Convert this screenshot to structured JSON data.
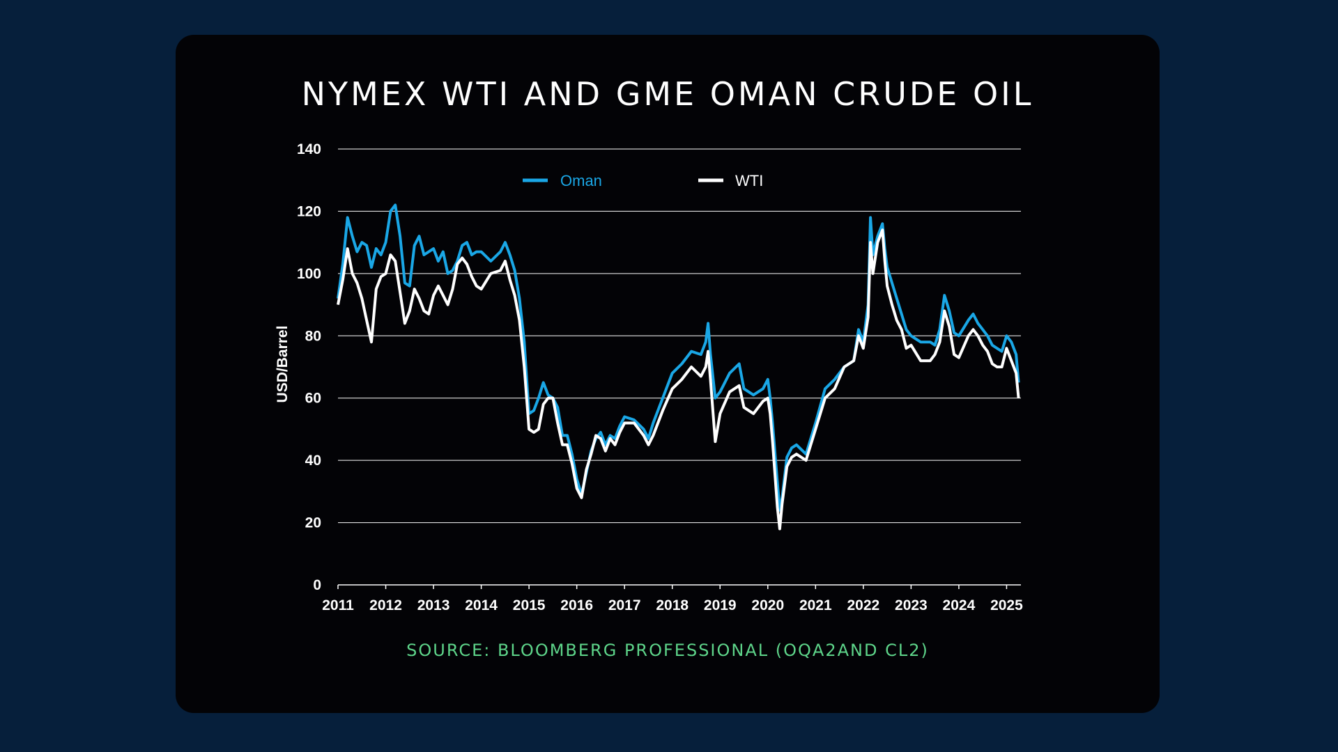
{
  "colors": {
    "background": "#061f3b",
    "card": "#030306",
    "oman": "#1aa7e6",
    "wti": "#ffffff",
    "source": "#5ed58a",
    "grid": "#ffffff"
  },
  "chart_data": {
    "type": "line",
    "title": "NYMEX WTI AND GME OMAN CRUDE OIL",
    "ylabel": "USD/Barrel",
    "xlabel": "",
    "source": "SOURCE: BLOOMBERG PROFESSIONAL (OQA2AND CL2)",
    "ylim": [
      0,
      140
    ],
    "yticks": [
      "0",
      "20",
      "40",
      "60",
      "80",
      "100",
      "120",
      "140"
    ],
    "xlim": [
      2011,
      2025.3
    ],
    "xticks": [
      "2011",
      "2012",
      "2013",
      "2014",
      "2015",
      "2016",
      "2017",
      "2018",
      "2019",
      "2020",
      "2021",
      "2022",
      "2023",
      "2024",
      "2025"
    ],
    "grid": "horizontal",
    "legend_position": "top",
    "series": [
      {
        "name": "Oman",
        "color": "#1aa7e6",
        "x": [
          2011.0,
          2011.1,
          2011.2,
          2011.3,
          2011.4,
          2011.5,
          2011.6,
          2011.7,
          2011.8,
          2011.9,
          2012.0,
          2012.1,
          2012.2,
          2012.3,
          2012.4,
          2012.5,
          2012.6,
          2012.7,
          2012.8,
          2012.9,
          2013.0,
          2013.1,
          2013.2,
          2013.3,
          2013.4,
          2013.5,
          2013.6,
          2013.7,
          2013.8,
          2013.9,
          2014.0,
          2014.2,
          2014.4,
          2014.5,
          2014.6,
          2014.7,
          2014.8,
          2014.9,
          2015.0,
          2015.1,
          2015.2,
          2015.3,
          2015.4,
          2015.5,
          2015.6,
          2015.7,
          2015.8,
          2015.9,
          2016.0,
          2016.1,
          2016.2,
          2016.3,
          2016.4,
          2016.5,
          2016.6,
          2016.7,
          2016.8,
          2016.9,
          2017.0,
          2017.2,
          2017.4,
          2017.5,
          2017.6,
          2017.8,
          2018.0,
          2018.2,
          2018.4,
          2018.6,
          2018.7,
          2018.75,
          2018.8,
          2018.9,
          2019.0,
          2019.2,
          2019.4,
          2019.5,
          2019.7,
          2019.9,
          2020.0,
          2020.05,
          2020.1,
          2020.2,
          2020.25,
          2020.3,
          2020.4,
          2020.5,
          2020.6,
          2020.8,
          2021.0,
          2021.2,
          2021.4,
          2021.6,
          2021.8,
          2021.9,
          2022.0,
          2022.1,
          2022.15,
          2022.2,
          2022.3,
          2022.4,
          2022.45,
          2022.5,
          2022.6,
          2022.7,
          2022.8,
          2022.9,
          2023.0,
          2023.2,
          2023.4,
          2023.5,
          2023.6,
          2023.7,
          2023.8,
          2023.9,
          2024.0,
          2024.2,
          2024.3,
          2024.4,
          2024.5,
          2024.6,
          2024.7,
          2024.8,
          2024.9,
          2025.0,
          2025.1,
          2025.2,
          2025.25
        ],
        "values": [
          92,
          103,
          118,
          112,
          107,
          110,
          109,
          102,
          108,
          106,
          110,
          120,
          122,
          112,
          97,
          96,
          109,
          112,
          106,
          107,
          108,
          104,
          107,
          100,
          101,
          104,
          109,
          110,
          106,
          107,
          107,
          104,
          107,
          110,
          106,
          101,
          92,
          78,
          55,
          56,
          60,
          65,
          61,
          60,
          57,
          48,
          48,
          42,
          34,
          29,
          36,
          43,
          47,
          49,
          45,
          48,
          47,
          51,
          54,
          53,
          50,
          47,
          52,
          60,
          68,
          71,
          75,
          74,
          78,
          84,
          74,
          60,
          62,
          68,
          71,
          63,
          61,
          63,
          66,
          60,
          52,
          33,
          24,
          28,
          41,
          44,
          45,
          42,
          52,
          63,
          66,
          70,
          72,
          82,
          78,
          90,
          118,
          106,
          112,
          116,
          108,
          102,
          97,
          92,
          87,
          82,
          80,
          78,
          78,
          77,
          82,
          93,
          88,
          81,
          80,
          85,
          87,
          84,
          82,
          80,
          77,
          76,
          75,
          80,
          78,
          74,
          65
        ]
      },
      {
        "name": "WTI",
        "color": "#ffffff",
        "x": [
          2011.0,
          2011.1,
          2011.2,
          2011.3,
          2011.4,
          2011.5,
          2011.6,
          2011.7,
          2011.8,
          2011.9,
          2012.0,
          2012.1,
          2012.2,
          2012.3,
          2012.4,
          2012.5,
          2012.6,
          2012.7,
          2012.8,
          2012.9,
          2013.0,
          2013.1,
          2013.2,
          2013.3,
          2013.4,
          2013.5,
          2013.6,
          2013.7,
          2013.8,
          2013.9,
          2014.0,
          2014.2,
          2014.4,
          2014.5,
          2014.6,
          2014.7,
          2014.8,
          2014.9,
          2015.0,
          2015.1,
          2015.2,
          2015.3,
          2015.4,
          2015.5,
          2015.6,
          2015.7,
          2015.8,
          2015.9,
          2016.0,
          2016.1,
          2016.2,
          2016.3,
          2016.4,
          2016.5,
          2016.6,
          2016.7,
          2016.8,
          2016.9,
          2017.0,
          2017.2,
          2017.4,
          2017.5,
          2017.6,
          2017.8,
          2018.0,
          2018.2,
          2018.4,
          2018.6,
          2018.7,
          2018.75,
          2018.8,
          2018.9,
          2019.0,
          2019.2,
          2019.4,
          2019.5,
          2019.7,
          2019.9,
          2020.0,
          2020.05,
          2020.1,
          2020.2,
          2020.25,
          2020.3,
          2020.4,
          2020.5,
          2020.6,
          2020.8,
          2021.0,
          2021.2,
          2021.4,
          2021.6,
          2021.8,
          2021.9,
          2022.0,
          2022.1,
          2022.15,
          2022.2,
          2022.3,
          2022.4,
          2022.45,
          2022.5,
          2022.6,
          2022.7,
          2022.8,
          2022.9,
          2023.0,
          2023.2,
          2023.4,
          2023.5,
          2023.6,
          2023.7,
          2023.8,
          2023.9,
          2024.0,
          2024.2,
          2024.3,
          2024.4,
          2024.5,
          2024.6,
          2024.7,
          2024.8,
          2024.9,
          2025.0,
          2025.1,
          2025.2,
          2025.25
        ],
        "values": [
          90,
          98,
          108,
          100,
          97,
          92,
          85,
          78,
          95,
          99,
          100,
          106,
          104,
          94,
          84,
          88,
          95,
          92,
          88,
          87,
          93,
          96,
          93,
          90,
          95,
          103,
          105,
          103,
          99,
          96,
          95,
          100,
          101,
          104,
          98,
          93,
          85,
          70,
          50,
          49,
          50,
          58,
          60,
          60,
          52,
          45,
          45,
          39,
          31,
          28,
          37,
          42,
          48,
          47,
          43,
          47,
          45,
          49,
          52,
          52,
          48,
          45,
          48,
          56,
          63,
          66,
          70,
          67,
          70,
          75,
          66,
          46,
          55,
          62,
          64,
          57,
          55,
          59,
          60,
          55,
          46,
          25,
          18,
          26,
          38,
          41,
          42,
          40,
          50,
          60,
          63,
          70,
          72,
          80,
          76,
          86,
          110,
          100,
          110,
          114,
          104,
          96,
          90,
          85,
          82,
          76,
          77,
          72,
          72,
          74,
          78,
          88,
          83,
          74,
          73,
          80,
          82,
          80,
          77,
          75,
          71,
          70,
          70,
          76,
          72,
          68,
          60
        ]
      }
    ]
  }
}
